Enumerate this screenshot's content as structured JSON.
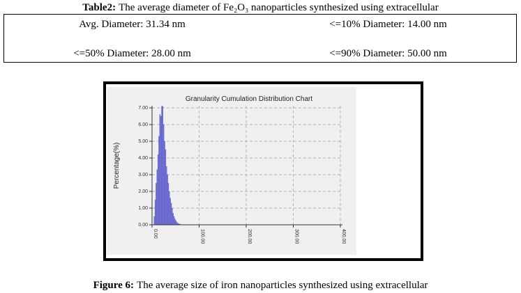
{
  "table": {
    "caption": {
      "label": "Table2:",
      "text": "The average diameter of Fe₂O₃ nanoparticles synthesized using extracellular"
    },
    "rows": [
      [
        "Avg. Diameter: 31.34 nm",
        "<=10% Diameter: 14.00 nm"
      ],
      [
        "<=50% Diameter: 28.00 nm",
        "<=90% Diameter: 50.00 nm"
      ]
    ]
  },
  "figure": {
    "chart_data": {
      "type": "histogram",
      "title": "Granularity Cumulation Distribution Chart",
      "y_label": "Percentage(%)",
      "bins": [
        4,
        6,
        8,
        10,
        12,
        14,
        16,
        18,
        20,
        22,
        24,
        26,
        28,
        30,
        32,
        34,
        36,
        38,
        40,
        42,
        44,
        46,
        48,
        50,
        52,
        54,
        56,
        58,
        60,
        62
      ],
      "values": [
        0.5,
        1.5,
        2.5,
        3.3,
        4.2,
        5.3,
        6.6,
        6.5,
        7.1,
        7.1,
        6.0,
        5.0,
        4.5,
        3.5,
        3.0,
        2.5,
        2.0,
        1.6,
        1.3,
        1.0,
        0.7,
        0.5,
        0.35,
        0.25,
        0.15,
        0.1,
        0.06,
        0.04,
        0.02
      ],
      "color": "#7373dd",
      "xlim": [
        0,
        400
      ],
      "xticks": [
        {
          "value": 0,
          "label": "0.00"
        },
        {
          "value": 100,
          "label": "100.00"
        },
        {
          "value": 200,
          "label": "200.00"
        },
        {
          "value": 300,
          "label": "300.00"
        },
        {
          "value": 400,
          "label": "400.00"
        }
      ],
      "ylim": [
        0,
        7
      ],
      "yticks": [
        {
          "value": 0,
          "label": "0.00"
        },
        {
          "value": 1,
          "label": "1.00"
        },
        {
          "value": 2,
          "label": "2.00"
        },
        {
          "value": 3,
          "label": "3.00"
        },
        {
          "value": 4,
          "label": "4.00"
        },
        {
          "value": 5,
          "label": "5.00"
        },
        {
          "value": 6,
          "label": "6.00"
        },
        {
          "value": 7,
          "label": "7.00"
        }
      ],
      "grid": true
    },
    "caption": {
      "label": "Figure 6:",
      "text": "The average size of iron nanoparticles synthesized using extracellular"
    }
  }
}
